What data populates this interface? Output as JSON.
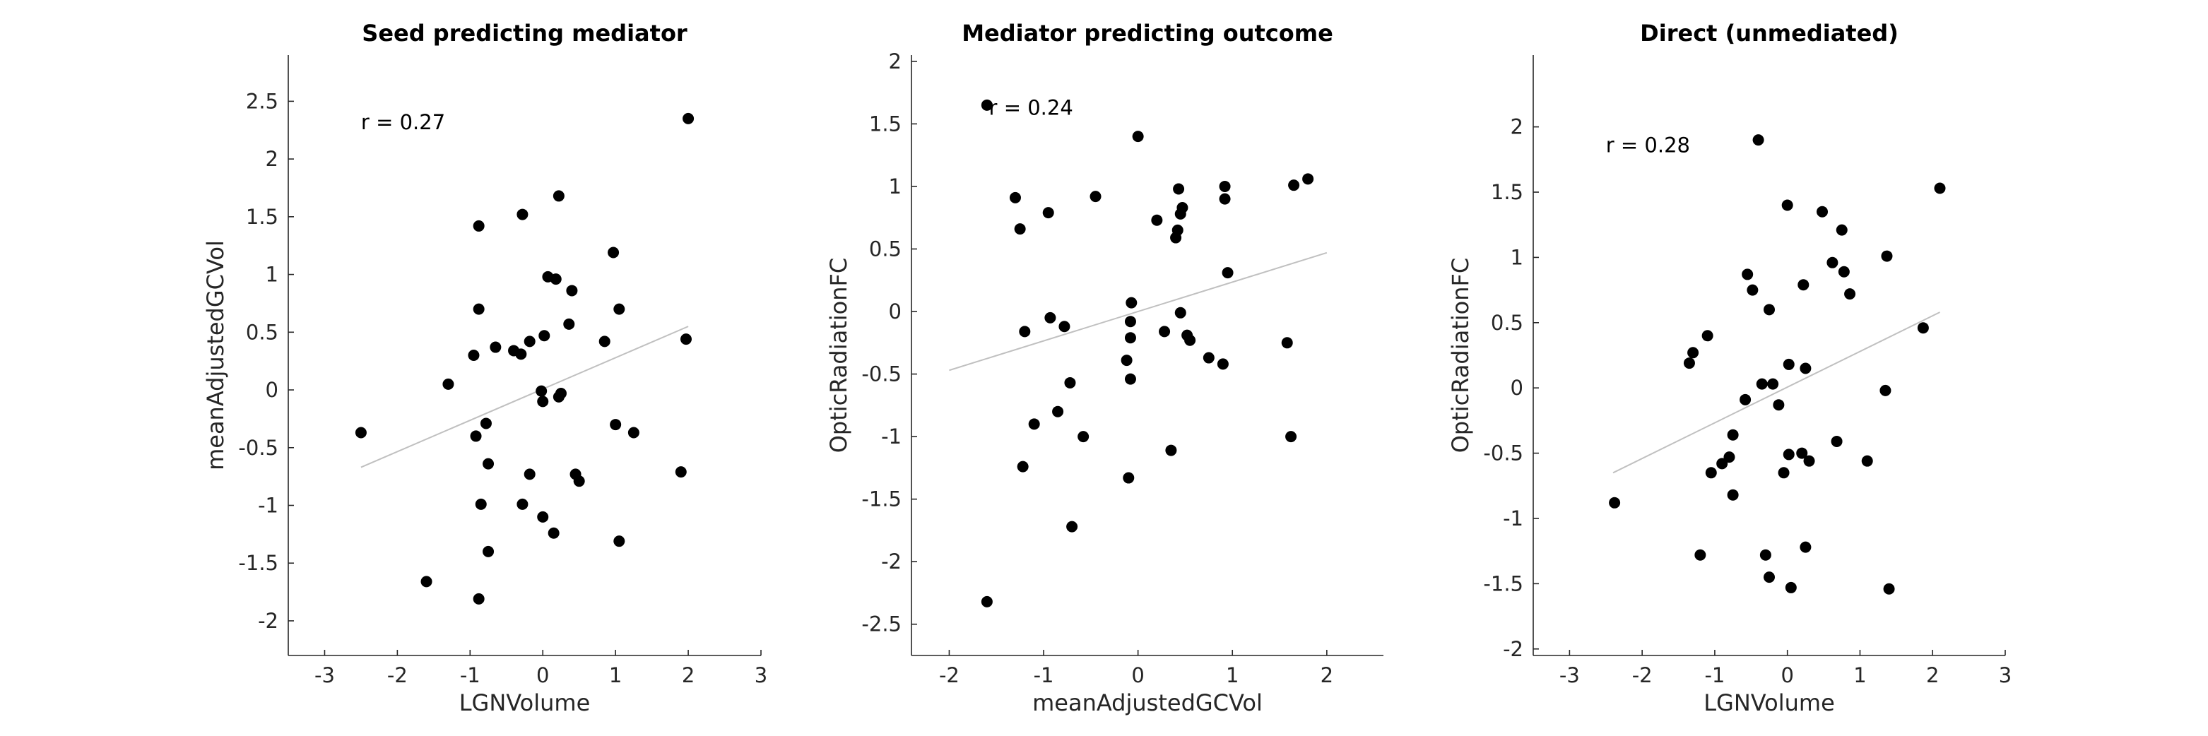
{
  "chart_data": [
    {
      "type": "scatter",
      "title": "Seed predicting mediator",
      "xlabel": "LGNVolume",
      "ylabel": "meanAdjustedGCVol",
      "xlim": [
        -3.5,
        3
      ],
      "ylim": [
        -2.3,
        2.9
      ],
      "xticks": [
        -3,
        -2,
        -1,
        0,
        1,
        2,
        3
      ],
      "xtick_labels": [
        "-3",
        "-2",
        "-1",
        "0",
        "1",
        "2",
        "3"
      ],
      "yticks": [
        -2,
        -1.5,
        -1,
        -0.5,
        0,
        0.5,
        1,
        1.5,
        2,
        2.5
      ],
      "ytick_labels": [
        "-2",
        "-1.5",
        "-1",
        "-0.5",
        "0",
        "0.5",
        "1",
        "1.5",
        "2",
        "2.5"
      ],
      "annotation": "r = 0.27",
      "annotation_at": [
        -2.5,
        2.32
      ],
      "fit_line": {
        "x": [
          -2.5,
          2.0
        ],
        "y": [
          -0.67,
          0.55
        ]
      },
      "points": [
        [
          -2.5,
          -0.37
        ],
        [
          -1.6,
          -1.66
        ],
        [
          -1.3,
          0.05
        ],
        [
          -0.95,
          0.3
        ],
        [
          -0.92,
          -0.4
        ],
        [
          -0.88,
          -1.81
        ],
        [
          -0.88,
          0.7
        ],
        [
          -0.88,
          1.42
        ],
        [
          -0.85,
          -0.99
        ],
        [
          -0.78,
          -0.29
        ],
        [
          -0.75,
          -1.4
        ],
        [
          -0.75,
          -0.64
        ],
        [
          -0.65,
          0.37
        ],
        [
          -0.4,
          0.34
        ],
        [
          -0.3,
          0.31
        ],
        [
          -0.28,
          1.52
        ],
        [
          -0.28,
          -0.99
        ],
        [
          -0.18,
          -0.73
        ],
        [
          -0.18,
          0.42
        ],
        [
          -0.02,
          -0.01
        ],
        [
          0.0,
          -0.1
        ],
        [
          0.0,
          -1.1
        ],
        [
          0.02,
          0.47
        ],
        [
          0.07,
          0.98
        ],
        [
          0.15,
          -1.24
        ],
        [
          0.18,
          0.96
        ],
        [
          0.22,
          -0.06
        ],
        [
          0.22,
          1.68
        ],
        [
          0.25,
          -0.03
        ],
        [
          0.36,
          0.57
        ],
        [
          0.4,
          0.86
        ],
        [
          0.45,
          -0.73
        ],
        [
          0.5,
          -0.79
        ],
        [
          0.85,
          0.42
        ],
        [
          0.97,
          1.19
        ],
        [
          1.0,
          -0.3
        ],
        [
          1.05,
          0.7
        ],
        [
          1.05,
          -1.31
        ],
        [
          1.25,
          -0.37
        ],
        [
          1.9,
          -0.71
        ],
        [
          1.97,
          0.44
        ],
        [
          2.0,
          2.35
        ]
      ]
    },
    {
      "type": "scatter",
      "title": "Mediator predicting outcome",
      "xlabel": "meanAdjustedGCVol",
      "ylabel": "OpticRadiationFC",
      "xlim": [
        -2.4,
        2.6
      ],
      "ylim": [
        -2.75,
        2.05
      ],
      "xticks": [
        -2,
        -1,
        0,
        1,
        2
      ],
      "xtick_labels": [
        "-2",
        "-1",
        "0",
        "1",
        "2"
      ],
      "yticks": [
        -2.5,
        -2,
        -1.5,
        -1,
        -0.5,
        0,
        0.5,
        1,
        1.5,
        2
      ],
      "ytick_labels": [
        "-2.5",
        "-2",
        "-1.5",
        "-1",
        "-0.5",
        "0",
        "0.5",
        "1",
        "1.5",
        "2"
      ],
      "annotation": "r = 0.24",
      "annotation_at": [
        -1.58,
        1.63
      ],
      "fit_line": {
        "x": [
          -2.0,
          2.0
        ],
        "y": [
          -0.47,
          0.47
        ]
      },
      "points": [
        [
          -1.6,
          1.65
        ],
        [
          -1.6,
          -2.32
        ],
        [
          -1.3,
          0.91
        ],
        [
          -1.25,
          0.66
        ],
        [
          -1.22,
          -1.24
        ],
        [
          -1.2,
          -0.16
        ],
        [
          -1.1,
          -0.9
        ],
        [
          -0.95,
          0.79
        ],
        [
          -0.93,
          -0.05
        ],
        [
          -0.85,
          -0.8
        ],
        [
          -0.78,
          -0.12
        ],
        [
          -0.72,
          -0.57
        ],
        [
          -0.7,
          -1.72
        ],
        [
          -0.58,
          -1.0
        ],
        [
          -0.45,
          0.92
        ],
        [
          -0.12,
          -0.39
        ],
        [
          -0.1,
          -1.33
        ],
        [
          -0.08,
          -0.21
        ],
        [
          -0.08,
          -0.54
        ],
        [
          -0.08,
          -0.08
        ],
        [
          -0.07,
          0.07
        ],
        [
          0.0,
          1.4
        ],
        [
          0.2,
          0.73
        ],
        [
          0.28,
          -0.16
        ],
        [
          0.35,
          -1.11
        ],
        [
          0.4,
          0.59
        ],
        [
          0.42,
          0.65
        ],
        [
          0.43,
          0.98
        ],
        [
          0.45,
          0.78
        ],
        [
          0.47,
          0.83
        ],
        [
          0.45,
          -0.01
        ],
        [
          0.52,
          -0.19
        ],
        [
          0.55,
          -0.23
        ],
        [
          0.75,
          -0.37
        ],
        [
          0.9,
          -0.42
        ],
        [
          0.92,
          1.0
        ],
        [
          0.92,
          0.9
        ],
        [
          0.95,
          0.31
        ],
        [
          1.58,
          -0.25
        ],
        [
          1.62,
          -1.0
        ],
        [
          1.65,
          1.01
        ],
        [
          1.8,
          1.06
        ]
      ]
    },
    {
      "type": "scatter",
      "title": "Direct (unmediated)",
      "xlabel": "LGNVolume",
      "ylabel": "OpticRadiationFC",
      "xlim": [
        -3.5,
        3
      ],
      "ylim": [
        -2.05,
        2.55
      ],
      "xticks": [
        -3,
        -2,
        -1,
        0,
        1,
        2,
        3
      ],
      "xtick_labels": [
        "-3",
        "-2",
        "-1",
        "0",
        "1",
        "2",
        "3"
      ],
      "yticks": [
        -2,
        -1.5,
        -1,
        -0.5,
        0,
        0.5,
        1,
        1.5,
        2
      ],
      "ytick_labels": [
        "-2",
        "-1.5",
        "-1",
        "-0.5",
        "0",
        "0.5",
        "1",
        "1.5",
        "2"
      ],
      "annotation": "r = 0.28",
      "annotation_at": [
        -2.5,
        1.86
      ],
      "fit_line": {
        "x": [
          -2.4,
          2.1
        ],
        "y": [
          -0.65,
          0.58
        ]
      },
      "points": [
        [
          -2.38,
          -0.88
        ],
        [
          -1.35,
          0.19
        ],
        [
          -1.3,
          0.27
        ],
        [
          -1.2,
          -1.28
        ],
        [
          -1.1,
          0.4
        ],
        [
          -1.05,
          -0.65
        ],
        [
          -0.9,
          -0.58
        ],
        [
          -0.8,
          -0.53
        ],
        [
          -0.75,
          -0.36
        ],
        [
          -0.75,
          -0.82
        ],
        [
          -0.58,
          -0.09
        ],
        [
          -0.55,
          0.87
        ],
        [
          -0.48,
          0.75
        ],
        [
          -0.4,
          1.9
        ],
        [
          -0.35,
          0.03
        ],
        [
          -0.3,
          -1.28
        ],
        [
          -0.25,
          -1.45
        ],
        [
          -0.25,
          0.6
        ],
        [
          -0.2,
          0.03
        ],
        [
          -0.12,
          -0.13
        ],
        [
          -0.05,
          -0.65
        ],
        [
          0.0,
          1.4
        ],
        [
          0.02,
          -0.51
        ],
        [
          0.02,
          0.18
        ],
        [
          0.05,
          -1.53
        ],
        [
          0.2,
          -0.5
        ],
        [
          0.22,
          0.79
        ],
        [
          0.25,
          0.15
        ],
        [
          0.25,
          -1.22
        ],
        [
          0.3,
          -0.56
        ],
        [
          0.48,
          1.35
        ],
        [
          0.62,
          0.96
        ],
        [
          0.68,
          -0.41
        ],
        [
          0.75,
          1.21
        ],
        [
          0.78,
          0.89
        ],
        [
          0.86,
          0.72
        ],
        [
          1.1,
          -0.56
        ],
        [
          1.35,
          -0.02
        ],
        [
          1.37,
          1.01
        ],
        [
          1.4,
          -1.54
        ],
        [
          1.87,
          0.46
        ],
        [
          2.1,
          1.53
        ]
      ]
    }
  ]
}
